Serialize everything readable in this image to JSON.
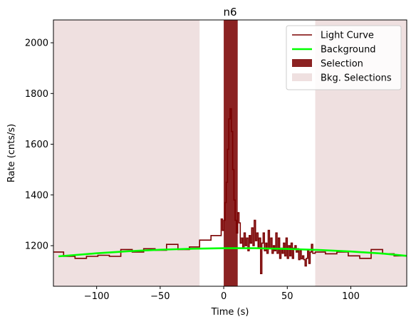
{
  "chart_data": {
    "type": "line",
    "title": "n6",
    "xlabel": "Time (s)",
    "ylabel": "Rate (cnts/s)",
    "xlim": [
      -134,
      144
    ],
    "ylim": [
      1040,
      2090
    ],
    "xticks": [
      -100,
      -50,
      0,
      50,
      100
    ],
    "yticks": [
      1200,
      1400,
      1600,
      1800,
      2000
    ],
    "grid": false,
    "legend_position": "top-right",
    "colors": {
      "light_curve": "#7a0000",
      "background": "#00ff00",
      "selection": "#8b2222",
      "bkg_selection": "#efe0e0"
    },
    "legend": [
      {
        "key": "light_curve",
        "label": "Light Curve"
      },
      {
        "key": "background",
        "label": "Background"
      },
      {
        "key": "selection",
        "label": "Selection"
      },
      {
        "key": "bkg_selection",
        "label": "Bkg. Selections"
      }
    ],
    "selection": {
      "x": [
        0,
        11
      ]
    },
    "bkg_selections": [
      {
        "x": [
          -134,
          -19
        ]
      },
      {
        "x": [
          72,
          144
        ]
      }
    ],
    "background_curve": {
      "x": [
        -130,
        -100,
        -75,
        -50,
        -25,
        0,
        25,
        50,
        75,
        100,
        125,
        144
      ],
      "y": [
        1158,
        1170,
        1178,
        1184,
        1188,
        1190,
        1190,
        1187,
        1183,
        1177,
        1169,
        1160
      ]
    },
    "light_curve": {
      "x": [
        -134,
        -126,
        -117,
        -108,
        -99,
        -90,
        -81,
        -72,
        -63,
        -54,
        -45,
        -36,
        -27,
        -19,
        -10,
        -2,
        -1,
        0,
        1,
        2,
        3,
        4,
        5,
        6,
        7,
        8,
        9,
        10,
        11,
        12,
        13,
        14,
        15,
        16,
        17,
        18,
        19,
        20,
        21,
        22,
        23,
        24,
        25,
        26,
        27,
        28,
        29,
        30,
        31,
        32,
        33,
        34,
        35,
        36,
        37,
        38,
        39,
        40,
        41,
        42,
        43,
        44,
        45,
        46,
        47,
        48,
        49,
        50,
        51,
        52,
        53,
        54,
        55,
        56,
        57,
        58,
        59,
        60,
        61,
        62,
        63,
        64,
        65,
        66,
        67,
        68,
        69,
        70,
        72,
        80,
        89,
        98,
        107,
        116,
        125,
        134,
        144
      ],
      "y": [
        1175,
        1158,
        1150,
        1158,
        1162,
        1158,
        1185,
        1175,
        1188,
        1182,
        1205,
        1185,
        1195,
        1222,
        1240,
        1305,
        1260,
        1300,
        1370,
        1450,
        1580,
        1700,
        1740,
        1650,
        1500,
        1380,
        1300,
        1250,
        1330,
        1290,
        1210,
        1230,
        1190,
        1250,
        1200,
        1230,
        1180,
        1240,
        1210,
        1270,
        1200,
        1300,
        1220,
        1250,
        1190,
        1230,
        1090,
        1210,
        1250,
        1180,
        1210,
        1170,
        1260,
        1190,
        1230,
        1170,
        1200,
        1180,
        1250,
        1170,
        1230,
        1150,
        1190,
        1170,
        1210,
        1160,
        1230,
        1150,
        1200,
        1160,
        1210,
        1150,
        1190,
        1200,
        1175,
        1188,
        1145,
        1180,
        1148,
        1160,
        1145,
        1120,
        1150,
        1180,
        1130,
        1175,
        1205,
        1170,
        1175,
        1168,
        1175,
        1160,
        1150,
        1185,
        1168,
        1160,
        1160
      ]
    }
  }
}
